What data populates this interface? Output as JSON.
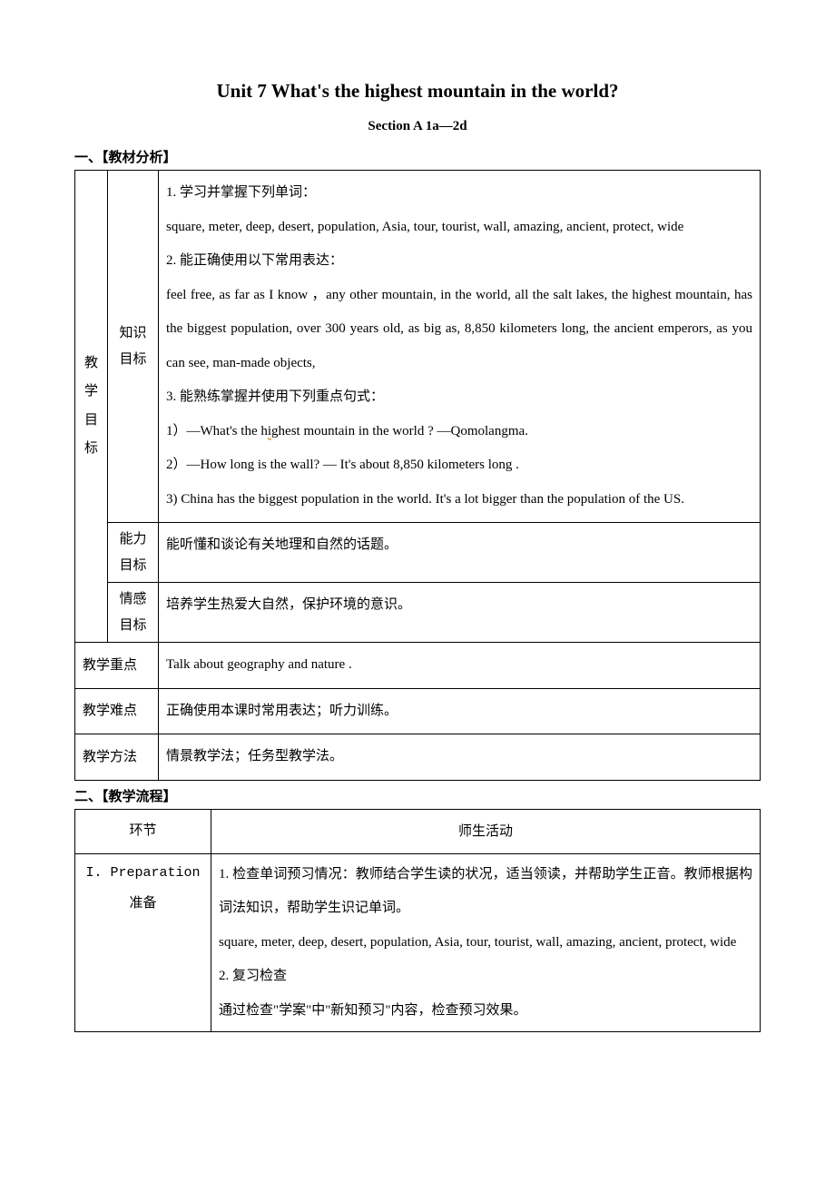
{
  "title": "Unit 7 What's the highest mountain in the world?",
  "subtitle": "Section A   1a—2d",
  "section1_header": "一、【教材分析】",
  "goals_label_chars": [
    "教",
    "学",
    "目",
    "标"
  ],
  "knowledge_label_chars": [
    "知识",
    "目标"
  ],
  "knowledge_content_1": "1. 学习并掌握下列单词：",
  "knowledge_content_2": "square, meter, deep, desert, population, Asia, tour, tourist, wall, amazing, ancient, protect, wide",
  "knowledge_content_3": "2. 能正确使用以下常用表达：",
  "knowledge_content_4": "feel free, as far as I know ，any other mountain, in the world, all the salt lakes, the highest mountain, has the biggest population, over 300 years old, as big as, 8,850 kilometers long, the ancient emperors, as you can see, man-made objects,",
  "knowledge_content_5": "3. 能熟练掌握并使用下列重点句式：",
  "knowledge_content_6a": "1）—What's the h",
  "knowledge_content_6b": "i",
  "knowledge_content_6c": "ghest mountain in the world ?    —Qomolangma.",
  "knowledge_content_7": "2）—How long is the wall?   — It's about 8,850 kilometers long .",
  "knowledge_content_8": "3)   China has the biggest population in the world. It's a lot bigger than the population of the US.",
  "ability_label_chars": [
    "能力",
    "目标"
  ],
  "ability_content": "能听懂和谈论有关地理和自然的话题。",
  "emotion_label_chars": [
    "情感",
    "目标"
  ],
  "emotion_content": "培养学生热爱大自然，保护环境的意识。",
  "focus_label": "教学重点",
  "focus_content": "Talk about geography and nature .",
  "difficulty_label": "教学难点",
  "difficulty_content": "正确使用本课时常用表达；听力训练。",
  "method_label": "教学方法",
  "method_content": "情景教学法；任务型教学法。",
  "section2_header": "二、【教学流程】",
  "table2_header_col1": "环节",
  "table2_header_col2": "师生活动",
  "step1_label_line1": "I. Preparation",
  "step1_label_line2": "准备",
  "step1_content_1": "1. 检查单词预习情况：教师结合学生读的状况，适当领读，并帮助学生正音。教师根据构词法知识，帮助学生识记单词。",
  "step1_content_2": "square, meter, deep, desert, population, Asia, tour, tourist, wall, amazing, ancient, protect, wide",
  "step1_content_3": "2. 复习检查",
  "step1_content_4": "通过检查\"学案\"中\"新知预习\"内容，检查预习效果。"
}
